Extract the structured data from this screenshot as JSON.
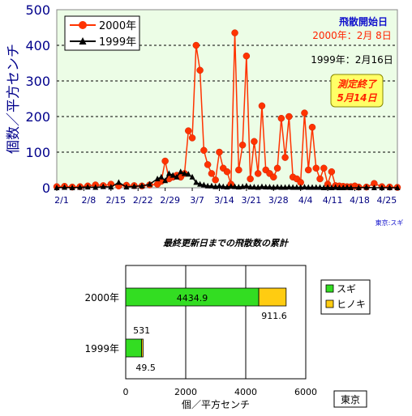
{
  "chart_data": [
    {
      "type": "line",
      "title": "",
      "ylabel": "個数／平方センチ",
      "xlabel": "",
      "ylim": [
        0,
        500
      ],
      "yticks": [
        0,
        100,
        200,
        300,
        400,
        500
      ],
      "xlim": [
        0,
        88
      ],
      "xticks": [
        {
          "label": "2/1",
          "x": 0
        },
        {
          "label": "2/8",
          "x": 7
        },
        {
          "label": "2/15",
          "x": 14
        },
        {
          "label": "2/22",
          "x": 21
        },
        {
          "label": "2/29",
          "x": 28
        },
        {
          "label": "3/7",
          "x": 35
        },
        {
          "label": "3/14",
          "x": 42
        },
        {
          "label": "3/21",
          "x": 49
        },
        {
          "label": "3/28",
          "x": 56
        },
        {
          "label": "4/4",
          "x": 63
        },
        {
          "label": "4/11",
          "x": 70
        },
        {
          "label": "4/18",
          "x": 77
        },
        {
          "label": "4/25",
          "x": 84
        }
      ],
      "grid": "horizontal dashed",
      "legend_position": "top-left",
      "series": [
        {
          "name": "2000年",
          "color": "#ff3300",
          "marker": "circle",
          "x": [
            0,
            2,
            4,
            6,
            8,
            10,
            12,
            14,
            16,
            18,
            20,
            22,
            24,
            26,
            27,
            28,
            29,
            30,
            31,
            32,
            33,
            34,
            35,
            36,
            37,
            38,
            39,
            40,
            41,
            42,
            43,
            44,
            45,
            46,
            47,
            48,
            49,
            50,
            51,
            52,
            53,
            54,
            55,
            56,
            57,
            58,
            59,
            60,
            61,
            62,
            63,
            64,
            65,
            66,
            67,
            68,
            69,
            70,
            71,
            72,
            73,
            74,
            75,
            76,
            77,
            78,
            80,
            82,
            84,
            86,
            88
          ],
          "y": [
            3,
            4,
            2,
            3,
            5,
            8,
            6,
            10,
            5,
            7,
            6,
            5,
            8,
            10,
            18,
            75,
            25,
            30,
            35,
            30,
            40,
            160,
            140,
            400,
            330,
            105,
            65,
            40,
            22,
            100,
            55,
            45,
            10,
            435,
            50,
            120,
            370,
            25,
            130,
            40,
            230,
            50,
            40,
            30,
            55,
            195,
            85,
            200,
            30,
            25,
            15,
            210,
            50,
            170,
            55,
            25,
            55,
            10,
            45,
            6,
            5,
            4,
            3,
            3,
            5,
            2,
            2,
            12,
            3,
            2,
            1
          ]
        },
        {
          "name": "1999年",
          "color": "#000000",
          "marker": "triangle",
          "x": [
            0,
            2,
            4,
            6,
            8,
            10,
            12,
            14,
            16,
            18,
            20,
            22,
            24,
            26,
            27,
            28,
            29,
            30,
            31,
            32,
            33,
            34,
            35,
            36,
            37,
            38,
            39,
            40,
            41,
            42,
            43,
            44,
            45,
            46,
            47,
            48,
            49,
            50,
            51,
            52,
            53,
            54,
            55,
            56,
            57,
            58,
            59,
            60,
            61,
            62,
            63,
            64,
            65,
            66,
            67,
            68,
            69,
            70,
            71,
            72,
            73,
            74,
            75,
            76,
            78,
            80,
            82,
            84,
            86,
            88
          ],
          "y": [
            0,
            1,
            0,
            1,
            2,
            1,
            3,
            2,
            15,
            2,
            4,
            5,
            10,
            25,
            30,
            20,
            40,
            35,
            30,
            45,
            40,
            38,
            30,
            15,
            10,
            8,
            5,
            5,
            3,
            5,
            3,
            2,
            4,
            3,
            2,
            3,
            5,
            2,
            2,
            1,
            3,
            2,
            2,
            1,
            2,
            1,
            1,
            2,
            1,
            1,
            1,
            2,
            1,
            1,
            1,
            1,
            0,
            1,
            0,
            1,
            0,
            0,
            1,
            0,
            0,
            1,
            0,
            0,
            0,
            0
          ]
        }
      ],
      "annotations": {
        "start_title": "飛散開始日",
        "start_2000": "2000年：2月 8日",
        "start_1999": "1999年：2月16日",
        "end_box": [
          "測定終了",
          "5月14日"
        ],
        "source": "東京:スギ"
      }
    },
    {
      "type": "bar",
      "orientation": "horizontal",
      "stacked": true,
      "title": "最終更新日までの飛散数の累計",
      "xlabel": "個／平方センチ",
      "xlim": [
        0,
        6000
      ],
      "xticks": [
        0,
        2000,
        4000,
        6000
      ],
      "categories": [
        "2000年",
        "1999年"
      ],
      "legend_position": "right",
      "series": [
        {
          "name": "スギ",
          "color": "#33dd22",
          "values": [
            4434.9,
            531
          ]
        },
        {
          "name": "ヒノキ",
          "color": "#ffcc11",
          "values": [
            911.6,
            49.5
          ]
        }
      ],
      "value_labels": [
        "4434.9",
        "911.6",
        "531",
        "49.5"
      ],
      "region_label": "東京"
    }
  ]
}
